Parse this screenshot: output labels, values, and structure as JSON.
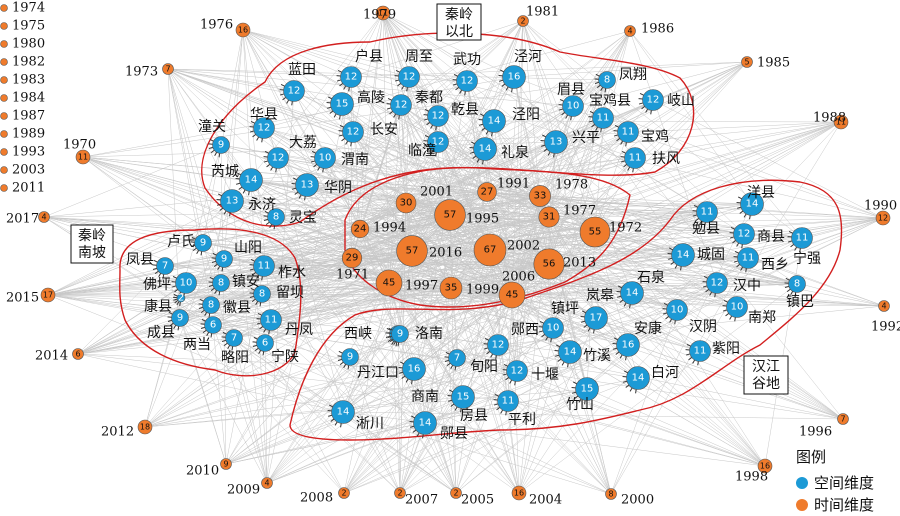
{
  "colors": {
    "spatial": "#1c9ad6",
    "temporal": "#ef7b2c",
    "edge": "#c8c8c8",
    "region": "#d21f1f"
  },
  "legend": {
    "title": "图例",
    "spatial": "空间维度",
    "temporal": "时间维度"
  },
  "region_boxes": [
    {
      "id": "qinling-north",
      "lines": [
        "秦岭",
        "以北"
      ]
    },
    {
      "id": "qinling-south",
      "lines": [
        "秦岭",
        "南坡"
      ]
    },
    {
      "id": "hanjiang",
      "lines": [
        "汉江",
        "谷地"
      ]
    }
  ],
  "spatial_nodes": [
    {
      "name": "户县",
      "value": 12
    },
    {
      "name": "周至",
      "value": 12
    },
    {
      "name": "武功",
      "value": 12
    },
    {
      "name": "泾河",
      "value": 16
    },
    {
      "name": "蓝田",
      "value": 12
    },
    {
      "name": "高陵",
      "value": 15
    },
    {
      "name": "秦都",
      "value": 12
    },
    {
      "name": "乾县",
      "value": 12
    },
    {
      "name": "凤翔",
      "value": 8
    },
    {
      "name": "眉县",
      "value": 10
    },
    {
      "name": "宝鸡县",
      "value": 11
    },
    {
      "name": "岐山",
      "value": 12
    },
    {
      "name": "华县",
      "value": 12
    },
    {
      "name": "潼关",
      "value": 9
    },
    {
      "name": "大荔",
      "value": 12
    },
    {
      "name": "长安",
      "value": 12
    },
    {
      "name": "临潼",
      "value": 12
    },
    {
      "name": "泾阳",
      "value": 14
    },
    {
      "name": "兴平",
      "value": 13
    },
    {
      "name": "宝鸡",
      "value": 11
    },
    {
      "name": "渭南",
      "value": 10
    },
    {
      "name": "礼泉",
      "value": 14
    },
    {
      "name": "扶风",
      "value": 11
    },
    {
      "name": "芮城",
      "value": 14
    },
    {
      "name": "华阴",
      "value": 13
    },
    {
      "name": "永济",
      "value": 13
    },
    {
      "name": "灵宝",
      "value": 8
    },
    {
      "name": "卢氏",
      "value": 9
    },
    {
      "name": "山阳",
      "value": 9
    },
    {
      "name": "凤县",
      "value": 7
    },
    {
      "name": "柞水",
      "value": 11
    },
    {
      "name": "佛坪",
      "value": 10
    },
    {
      "name": "镇安",
      "value": 8
    },
    {
      "name": "留坝",
      "value": 8
    },
    {
      "name": "康县",
      "value": 2
    },
    {
      "name": "徽县",
      "value": 8
    },
    {
      "name": "成县",
      "value": 9
    },
    {
      "name": "两当",
      "value": 6
    },
    {
      "name": "丹凤",
      "value": 11
    },
    {
      "name": "略阳",
      "value": 7
    },
    {
      "name": "宁陕",
      "value": 6
    },
    {
      "name": "洋县",
      "value": 14
    },
    {
      "name": "勉县",
      "value": 11
    },
    {
      "name": "商县",
      "value": 12
    },
    {
      "name": "宁强",
      "value": 11
    },
    {
      "name": "城固",
      "value": 14
    },
    {
      "name": "西乡",
      "value": 11
    },
    {
      "name": "石泉",
      "value": 14
    },
    {
      "name": "汉中",
      "value": 12
    },
    {
      "name": "镇巴",
      "value": 8
    },
    {
      "name": "岚皋",
      "value": 17
    },
    {
      "name": "镇坪",
      "value": 10
    },
    {
      "name": "汉阴",
      "value": 10
    },
    {
      "name": "南郑",
      "value": 10
    },
    {
      "name": "安康",
      "value": 16
    },
    {
      "name": "紫阳",
      "value": 11
    },
    {
      "name": "西峡",
      "value": 9
    },
    {
      "name": "洛南",
      "value": 9
    },
    {
      "name": "郧西",
      "value": 12
    },
    {
      "name": "竹溪",
      "value": 14
    },
    {
      "name": "丹江口",
      "value": 9
    },
    {
      "name": "旬阳",
      "value": 7
    },
    {
      "name": "十堰",
      "value": 12
    },
    {
      "name": "白河",
      "value": 14
    },
    {
      "name": "商南",
      "value": 16
    },
    {
      "name": "房县",
      "value": 15
    },
    {
      "name": "平利",
      "value": 11
    },
    {
      "name": "竹山",
      "value": 15
    },
    {
      "name": "淅川",
      "value": 14
    },
    {
      "name": "郧县",
      "value": 14
    }
  ],
  "temporal_inner": [
    {
      "year": "2001",
      "value": 30
    },
    {
      "year": "1991",
      "value": 27
    },
    {
      "year": "1978",
      "value": 33
    },
    {
      "year": "1995",
      "value": 57
    },
    {
      "year": "1977",
      "value": 31
    },
    {
      "year": "1994",
      "value": 24
    },
    {
      "year": "1972",
      "value": 55
    },
    {
      "year": "2016",
      "value": 57
    },
    {
      "year": "2002",
      "value": 67
    },
    {
      "year": "1971",
      "value": 29
    },
    {
      "year": "2013",
      "value": 56
    },
    {
      "year": "2006",
      "value": 45
    },
    {
      "year": "1997",
      "value": 45
    },
    {
      "year": "1999",
      "value": 35
    },
    {
      "year": "2006",
      "value": 44
    }
  ],
  "temporal_outer": [
    {
      "year": "1979",
      "value": 11
    },
    {
      "year": "1981",
      "value": 2
    },
    {
      "year": "1976",
      "value": 16
    },
    {
      "year": "1986",
      "value": 4
    },
    {
      "year": "1973",
      "value": 7
    },
    {
      "year": "1985",
      "value": 5
    },
    {
      "year": "1970",
      "value": 11
    },
    {
      "year": "1988",
      "value": 11
    },
    {
      "year": "2017",
      "value": 4
    },
    {
      "year": "1990",
      "value": 12
    },
    {
      "year": "2015",
      "value": 17
    },
    {
      "year": "1992",
      "value": 4
    },
    {
      "year": "2014",
      "value": 6
    },
    {
      "year": "1996",
      "value": 7
    },
    {
      "year": "2012",
      "value": 18
    },
    {
      "year": "1998",
      "value": 16
    },
    {
      "year": "2010",
      "value": 9
    },
    {
      "year": "2009",
      "value": 4
    },
    {
      "year": "2008",
      "value": 2
    },
    {
      "year": "2007",
      "value": 2
    },
    {
      "year": "2005",
      "value": 2
    },
    {
      "year": "2004",
      "value": 16
    },
    {
      "year": "2000",
      "value": 8
    }
  ],
  "year_list": [
    "1974",
    "1975",
    "1980",
    "1982",
    "1983",
    "1984",
    "1987",
    "1989",
    "1993",
    "2003",
    "2011"
  ]
}
